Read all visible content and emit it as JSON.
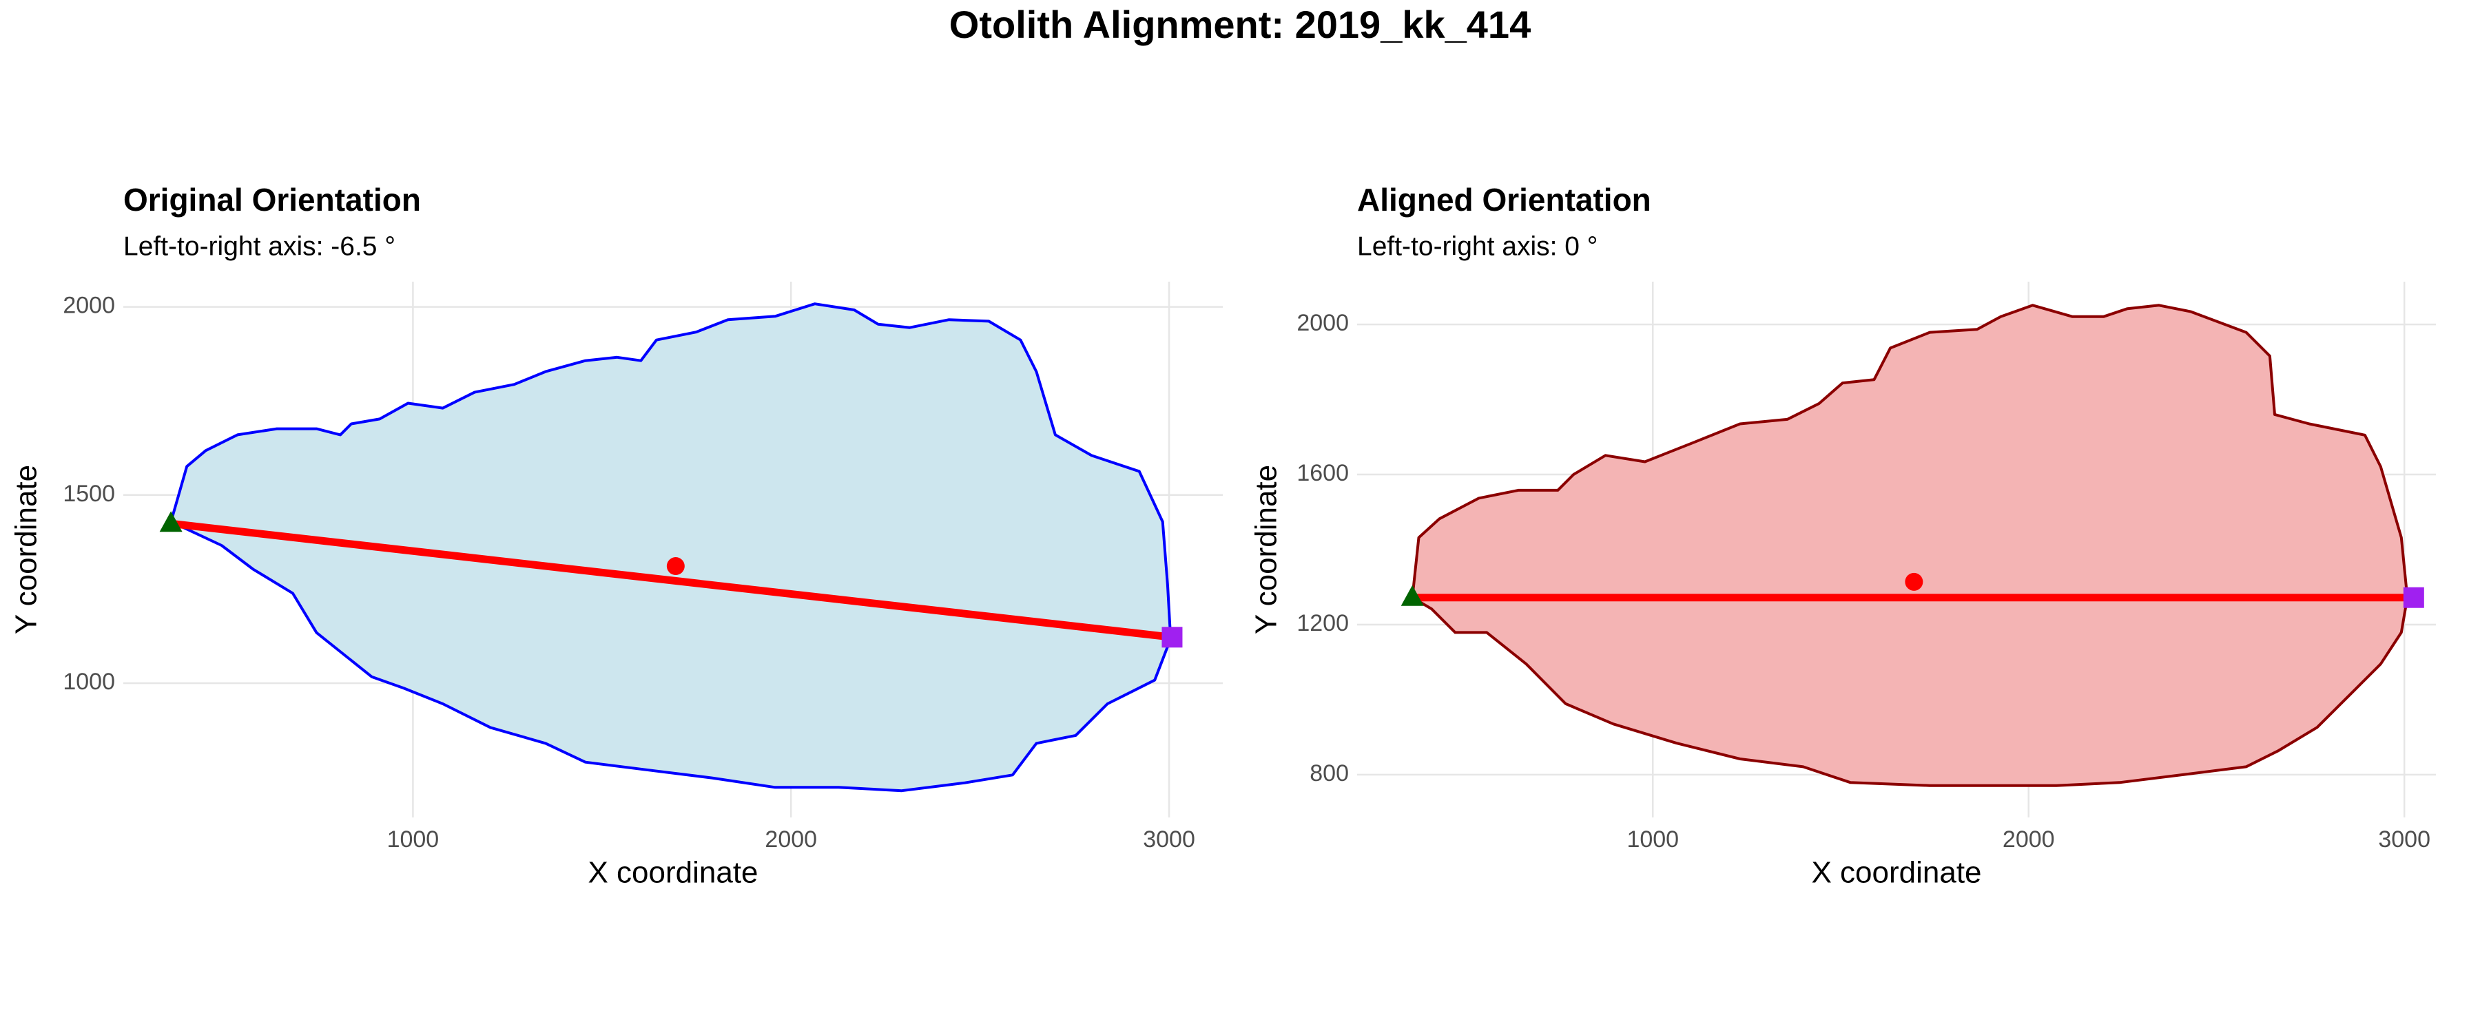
{
  "title": "Otolith Alignment: 2019_kk_414",
  "chart_data": [
    {
      "type": "outline",
      "title": "Original Orientation",
      "subtitle": "Left-to-right axis: -6.5 °",
      "xlabel": "X coordinate",
      "ylabel": "Y coordinate",
      "xlim": [
        234,
        3142
      ],
      "ylim": [
        643,
        2067
      ],
      "xticks": [
        1000,
        2000,
        3000
      ],
      "yticks": [
        1000,
        1500,
        2000
      ],
      "grid": true,
      "outline": {
        "color": "#0000ff",
        "fill": "#cde6ee",
        "x": [
          360,
          402,
          452,
          536,
          640,
          745,
          808,
          837,
          912,
          987,
          1079,
          1163,
          1268,
          1351,
          1456,
          1540,
          1603,
          1644,
          1749,
          1833,
          1958,
          2063,
          2167,
          2230,
          2314,
          2418,
          2523,
          2607,
          2649,
          2699,
          2795,
          2921,
          2983,
          2996,
          3004,
          2962,
          2837,
          2753,
          2649,
          2586,
          2460,
          2293,
          2126,
          1958,
          1791,
          1623,
          1456,
          1351,
          1205,
          1079,
          975,
          891,
          745,
          682,
          577,
          494
        ],
        "y": [
          1429,
          1576,
          1618,
          1660,
          1676,
          1676,
          1660,
          1689,
          1702,
          1744,
          1731,
          1773,
          1794,
          1828,
          1857,
          1866,
          1857,
          1912,
          1933,
          1966,
          1975,
          2008,
          1992,
          1954,
          1945,
          1966,
          1962,
          1912,
          1828,
          1660,
          1605,
          1563,
          1429,
          1261,
          1118,
          1008,
          945,
          861,
          840,
          756,
          735,
          714,
          723,
          723,
          748,
          769,
          790,
          840,
          882,
          945,
          987,
          1017,
          1134,
          1239,
          1303,
          1366
        ]
      },
      "axis_line_color": "#ff0000",
      "centroid": {
        "x": 1695,
        "y": 1311,
        "color": "#ff0000"
      },
      "left": {
        "x": 360,
        "y": 1424,
        "color": "#006400",
        "shape": "triangle"
      },
      "right": {
        "x": 3008,
        "y": 1122,
        "color": "#a020f0",
        "shape": "square"
      }
    },
    {
      "type": "outline",
      "title": "Aligned Orientation",
      "subtitle": "Left-to-right axis: 0 °",
      "xlabel": "X coordinate",
      "ylabel": "Y coordinate",
      "xlim": [
        213,
        3084
      ],
      "ylim": [
        686,
        2114
      ],
      "xticks": [
        1000,
        2000,
        3000
      ],
      "yticks": [
        800,
        1200,
        1600,
        2000
      ],
      "grid": true,
      "outline": {
        "color": "#8b0000",
        "fill": "#f4b4b4",
        "x": [
          360,
          377,
          432,
          537,
          642,
          747,
          789,
          874,
          979,
          1105,
          1232,
          1358,
          1442,
          1505,
          1589,
          1632,
          1737,
          1863,
          1926,
          2011,
          2116,
          2200,
          2263,
          2347,
          2432,
          2579,
          2642,
          2655,
          2747,
          2895,
          2937,
          2992,
          3008,
          2992,
          2937,
          2853,
          2768,
          2663,
          2579,
          2411,
          2242,
          2074,
          1905,
          1737,
          1526,
          1400,
          1232,
          1063,
          895,
          768,
          663,
          558,
          474,
          411
        ],
        "y": [
          1272,
          1432,
          1482,
          1537,
          1558,
          1558,
          1600,
          1651,
          1634,
          1684,
          1735,
          1747,
          1789,
          1844,
          1853,
          1937,
          1979,
          1987,
          2021,
          2051,
          2021,
          2021,
          2042,
          2051,
          2034,
          1979,
          1916,
          1760,
          1735,
          1705,
          1621,
          1432,
          1272,
          1179,
          1095,
          1011,
          926,
          863,
          821,
          800,
          779,
          771,
          771,
          771,
          779,
          821,
          842,
          884,
          935,
          989,
          1095,
          1179,
          1179,
          1242
        ]
      },
      "axis_line_color": "#ff0000",
      "centroid": {
        "x": 1695,
        "y": 1314,
        "color": "#ff0000"
      },
      "left": {
        "x": 360,
        "y": 1272,
        "color": "#006400",
        "shape": "triangle"
      },
      "right": {
        "x": 3025,
        "y": 1272,
        "color": "#a020f0",
        "shape": "square"
      }
    }
  ]
}
